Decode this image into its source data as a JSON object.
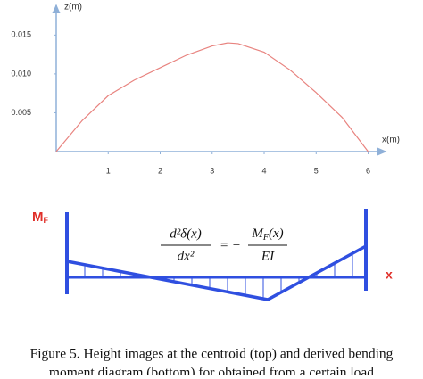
{
  "chart_data": {
    "type": "line",
    "ylabel": "z(m)",
    "xlabel": "x(m)",
    "x": [
      0,
      0.5,
      1,
      1.5,
      2,
      2.5,
      3,
      3.3,
      3.5,
      4,
      4.5,
      5,
      5.5,
      6
    ],
    "series": [
      {
        "name": "height",
        "color": "#e8837f",
        "values": [
          0,
          0.004,
          0.0072,
          0.0092,
          0.0108,
          0.0124,
          0.0136,
          0.014,
          0.0139,
          0.0128,
          0.0105,
          0.0076,
          0.0044,
          0
        ]
      }
    ],
    "xlim": [
      0,
      6.3
    ],
    "ylim": [
      0,
      0.0186
    ],
    "xticks": [
      1,
      2,
      3,
      4,
      5,
      6
    ],
    "yticks": [
      0.005,
      {
        "value": 0.01,
        "label": "0.010"
      },
      0.015
    ],
    "grid": false
  },
  "diagram": {
    "moment_label": "M",
    "moment_sub": "F",
    "axis_label": "x",
    "equation": {
      "lhs_num": "d²δ(x)",
      "lhs_den": "dx²",
      "sign": "= −",
      "rhs_num_main": "M",
      "rhs_num_sub": "F",
      "rhs_num_tail": "(x)",
      "rhs_den": "EI"
    }
  },
  "caption": {
    "line1": "Figure 5. Height images at the centroid (top) and derived bending",
    "line2": "moment diagram (bottom) for obtained from a certain load"
  }
}
